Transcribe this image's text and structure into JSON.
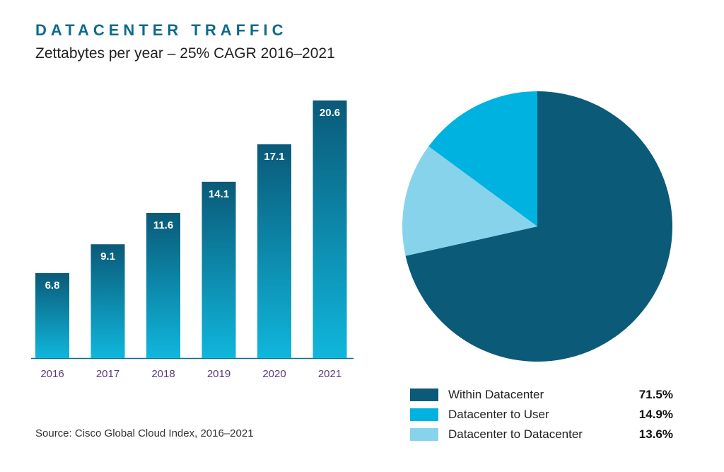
{
  "header": {
    "title": "DATACENTER TRAFFIC",
    "subtitle": "Zettabytes per year – 25% CAGR 2016–2021"
  },
  "footer": {
    "source": "Source: Cisco Global Cloud Index, 2016–2021"
  },
  "colors": {
    "bar_top": "#0a5a78",
    "bar_bottom": "#10b6dc",
    "slice_within": "#0a5a78",
    "slice_to_user": "#00b2df",
    "slice_dc_to_dc": "#87d3ec",
    "axis": "#0d6b8c"
  },
  "chart_data": [
    {
      "type": "bar",
      "categories": [
        "2016",
        "2017",
        "2018",
        "2019",
        "2020",
        "2021"
      ],
      "values": [
        6.8,
        9.1,
        11.6,
        14.1,
        17.1,
        20.6
      ],
      "value_labels": [
        "6.8",
        "9.1",
        "11.6",
        "14.1",
        "17.1",
        "20.6"
      ],
      "ylim": [
        0,
        20.6
      ],
      "grid": false
    },
    {
      "type": "pie",
      "labels": [
        "Within Datacenter",
        "Datacenter to User",
        "Datacenter to Datacenter"
      ],
      "values": [
        71.5,
        14.9,
        13.6
      ],
      "value_labels": [
        "71.5%",
        "14.9%",
        "13.6%"
      ],
      "legend": "bottom"
    }
  ]
}
